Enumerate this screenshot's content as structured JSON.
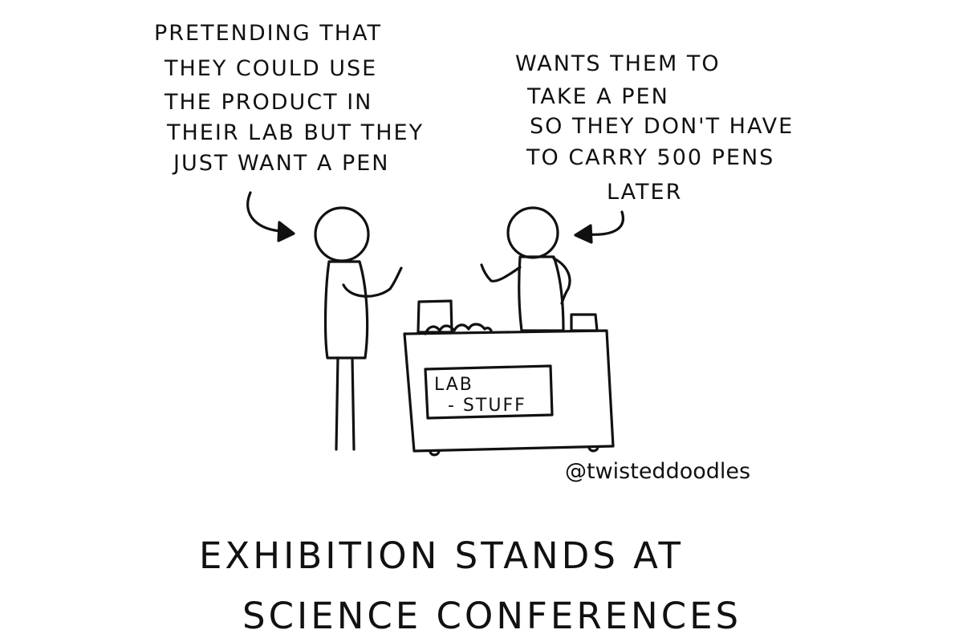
{
  "visitor_caption": {
    "lines": [
      "Pretending that",
      "they could use",
      "the product in",
      "their lab but they",
      "just want a pen"
    ]
  },
  "exhibitor_caption": {
    "lines": [
      "Wants them to",
      "take a pen",
      "so they don't have",
      "to carry 500 pens",
      "later"
    ]
  },
  "booth": {
    "sign_line1": "LAB",
    "sign_line2": "- STUFF"
  },
  "signature": "@twisteddoodles",
  "title": {
    "line1": "Exhibition stands at",
    "line2": "science conferences"
  }
}
